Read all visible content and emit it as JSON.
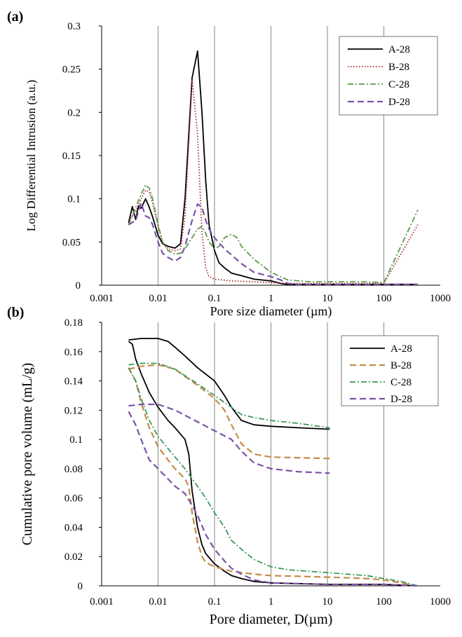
{
  "chart_data": [
    {
      "panel": "(a)",
      "type": "line",
      "x_scale": "log",
      "xlabel": "Pore size diameter (µm)",
      "ylabel": "Log Differential Intrusion (a.u.)",
      "xlim": [
        0.001,
        1000
      ],
      "ylim": [
        0,
        0.3
      ],
      "x_ticks": [
        "0.001",
        "0.01",
        "0.1",
        "1",
        "10",
        "100",
        "1000"
      ],
      "y_ticks": [
        "0",
        "0.05",
        "0.1",
        "0.15",
        "0.2",
        "0.25",
        "0.3"
      ],
      "vertical_grid": true,
      "legend_position": "top-right",
      "series": [
        {
          "name": "A-28",
          "color": "#000000",
          "style": "solid",
          "points": [
            [
              0.003,
              0.072
            ],
            [
              0.0035,
              0.091
            ],
            [
              0.004,
              0.076
            ],
            [
              0.0045,
              0.092
            ],
            [
              0.005,
              0.089
            ],
            [
              0.006,
              0.1
            ],
            [
              0.007,
              0.09
            ],
            [
              0.008,
              0.079
            ],
            [
              0.01,
              0.058
            ],
            [
              0.012,
              0.048
            ],
            [
              0.015,
              0.045
            ],
            [
              0.02,
              0.043
            ],
            [
              0.025,
              0.048
            ],
            [
              0.03,
              0.1
            ],
            [
              0.04,
              0.24
            ],
            [
              0.05,
              0.271
            ],
            [
              0.06,
              0.2
            ],
            [
              0.07,
              0.12
            ],
            [
              0.08,
              0.07
            ],
            [
              0.1,
              0.04
            ],
            [
              0.12,
              0.026
            ],
            [
              0.15,
              0.02
            ],
            [
              0.2,
              0.014
            ],
            [
              0.3,
              0.011
            ],
            [
              0.5,
              0.007
            ],
            [
              1,
              0.005
            ],
            [
              1.5,
              0.002
            ],
            [
              2,
              0.001
            ],
            [
              10,
              0.001
            ],
            [
              100,
              0.001
            ],
            [
              400,
              0.001
            ]
          ]
        },
        {
          "name": "B-28",
          "color": "#a52a2a",
          "style": "dotted",
          "points": [
            [
              0.003,
              0.075
            ],
            [
              0.004,
              0.085
            ],
            [
              0.005,
              0.1
            ],
            [
              0.006,
              0.11
            ],
            [
              0.007,
              0.108
            ],
            [
              0.008,
              0.095
            ],
            [
              0.01,
              0.068
            ],
            [
              0.012,
              0.05
            ],
            [
              0.015,
              0.042
            ],
            [
              0.02,
              0.04
            ],
            [
              0.025,
              0.042
            ],
            [
              0.03,
              0.08
            ],
            [
              0.04,
              0.238
            ],
            [
              0.05,
              0.175
            ],
            [
              0.06,
              0.06
            ],
            [
              0.07,
              0.02
            ],
            [
              0.08,
              0.01
            ],
            [
              0.1,
              0.007
            ],
            [
              0.2,
              0.005
            ],
            [
              0.5,
              0.004
            ],
            [
              1,
              0.003
            ],
            [
              2,
              0.002
            ],
            [
              10,
              0.002
            ],
            [
              100,
              0.002
            ],
            [
              400,
              0.07
            ]
          ]
        },
        {
          "name": "C-28",
          "color": "#5a9a4a",
          "style": "dash-dot",
          "points": [
            [
              0.003,
              0.07
            ],
            [
              0.004,
              0.09
            ],
            [
              0.005,
              0.105
            ],
            [
              0.006,
              0.116
            ],
            [
              0.007,
              0.112
            ],
            [
              0.008,
              0.1
            ],
            [
              0.01,
              0.07
            ],
            [
              0.012,
              0.05
            ],
            [
              0.015,
              0.04
            ],
            [
              0.02,
              0.036
            ],
            [
              0.025,
              0.037
            ],
            [
              0.03,
              0.042
            ],
            [
              0.04,
              0.055
            ],
            [
              0.05,
              0.065
            ],
            [
              0.06,
              0.068
            ],
            [
              0.07,
              0.06
            ],
            [
              0.08,
              0.05
            ],
            [
              0.1,
              0.042
            ],
            [
              0.12,
              0.045
            ],
            [
              0.15,
              0.055
            ],
            [
              0.2,
              0.059
            ],
            [
              0.25,
              0.055
            ],
            [
              0.3,
              0.045
            ],
            [
              0.5,
              0.03
            ],
            [
              1,
              0.015
            ],
            [
              2,
              0.006
            ],
            [
              5,
              0.004
            ],
            [
              10,
              0.004
            ],
            [
              50,
              0.004
            ],
            [
              100,
              0.003
            ],
            [
              400,
              0.087
            ]
          ]
        },
        {
          "name": "D-28",
          "color": "#7b52a8",
          "style": "dashed",
          "points": [
            [
              0.003,
              0.07
            ],
            [
              0.004,
              0.075
            ],
            [
              0.005,
              0.095
            ],
            [
              0.006,
              0.08
            ],
            [
              0.007,
              0.078
            ],
            [
              0.008,
              0.07
            ],
            [
              0.01,
              0.05
            ],
            [
              0.012,
              0.037
            ],
            [
              0.015,
              0.032
            ],
            [
              0.02,
              0.028
            ],
            [
              0.025,
              0.032
            ],
            [
              0.03,
              0.045
            ],
            [
              0.04,
              0.075
            ],
            [
              0.05,
              0.094
            ],
            [
              0.06,
              0.09
            ],
            [
              0.07,
              0.075
            ],
            [
              0.08,
              0.065
            ],
            [
              0.1,
              0.055
            ],
            [
              0.15,
              0.042
            ],
            [
              0.2,
              0.035
            ],
            [
              0.3,
              0.025
            ],
            [
              0.5,
              0.015
            ],
            [
              1,
              0.01
            ],
            [
              1.5,
              0.006
            ],
            [
              2,
              0.002
            ],
            [
              3,
              0.001
            ],
            [
              10,
              0.001
            ],
            [
              100,
              0.001
            ],
            [
              400,
              0.001
            ]
          ]
        }
      ]
    },
    {
      "panel": "(b)",
      "type": "line",
      "x_scale": "log",
      "xlabel": "Pore diameter, D(µm)",
      "ylabel": "Cumulative pore volume (mL/g)",
      "xlim": [
        0.001,
        1000
      ],
      "ylim": [
        0,
        0.18
      ],
      "x_ticks": [
        "0.001",
        "0.01",
        "0.1",
        "1",
        "10",
        "100",
        "1000"
      ],
      "y_ticks": [
        "0",
        "0.02",
        "0.04",
        "0.06",
        "0.08",
        "0.1",
        "0.12",
        "0.14",
        "0.16",
        "0.18"
      ],
      "vertical_grid": true,
      "legend_position": "top-right",
      "series": [
        {
          "name": "A-28",
          "color": "#000000",
          "style": "solid",
          "intrusion": [
            [
              0.003,
              0.167
            ],
            [
              0.0035,
              0.165
            ],
            [
              0.004,
              0.155
            ],
            [
              0.005,
              0.145
            ],
            [
              0.007,
              0.132
            ],
            [
              0.01,
              0.122
            ],
            [
              0.015,
              0.113
            ],
            [
              0.02,
              0.108
            ],
            [
              0.03,
              0.1
            ],
            [
              0.035,
              0.09
            ],
            [
              0.04,
              0.065
            ],
            [
              0.05,
              0.04
            ],
            [
              0.06,
              0.028
            ],
            [
              0.07,
              0.022
            ],
            [
              0.1,
              0.015
            ],
            [
              0.15,
              0.01
            ],
            [
              0.2,
              0.007
            ],
            [
              0.3,
              0.005
            ],
            [
              0.5,
              0.003
            ],
            [
              1,
              0.002
            ],
            [
              10,
              0.001
            ],
            [
              100,
              0.001
            ],
            [
              400,
              0.0
            ]
          ],
          "extrusion": [
            [
              0.003,
              0.168
            ],
            [
              0.005,
              0.169
            ],
            [
              0.01,
              0.169
            ],
            [
              0.015,
              0.167
            ],
            [
              0.02,
              0.163
            ],
            [
              0.03,
              0.157
            ],
            [
              0.05,
              0.149
            ],
            [
              0.1,
              0.14
            ],
            [
              0.15,
              0.13
            ],
            [
              0.2,
              0.122
            ],
            [
              0.3,
              0.113
            ],
            [
              0.5,
              0.11
            ],
            [
              1,
              0.109
            ],
            [
              3,
              0.108
            ],
            [
              11,
              0.107
            ]
          ]
        },
        {
          "name": "B-28",
          "color": "#c88a4a",
          "style": "dashed",
          "intrusion": [
            [
              0.003,
              0.149
            ],
            [
              0.004,
              0.14
            ],
            [
              0.005,
              0.125
            ],
            [
              0.007,
              0.108
            ],
            [
              0.01,
              0.095
            ],
            [
              0.015,
              0.086
            ],
            [
              0.02,
              0.08
            ],
            [
              0.03,
              0.073
            ],
            [
              0.035,
              0.068
            ],
            [
              0.04,
              0.05
            ],
            [
              0.05,
              0.03
            ],
            [
              0.06,
              0.02
            ],
            [
              0.07,
              0.016
            ],
            [
              0.1,
              0.013
            ],
            [
              0.2,
              0.01
            ],
            [
              0.5,
              0.008
            ],
            [
              1,
              0.007
            ],
            [
              10,
              0.006
            ],
            [
              50,
              0.005
            ],
            [
              100,
              0.004
            ],
            [
              200,
              0.002
            ],
            [
              400,
              0.0
            ]
          ],
          "extrusion": [
            [
              0.003,
              0.148
            ],
            [
              0.005,
              0.15
            ],
            [
              0.01,
              0.151
            ],
            [
              0.02,
              0.148
            ],
            [
              0.03,
              0.143
            ],
            [
              0.05,
              0.137
            ],
            [
              0.1,
              0.128
            ],
            [
              0.15,
              0.12
            ],
            [
              0.2,
              0.11
            ],
            [
              0.3,
              0.097
            ],
            [
              0.5,
              0.09
            ],
            [
              1,
              0.088
            ],
            [
              11,
              0.087
            ]
          ]
        },
        {
          "name": "C-28",
          "color": "#3a9a5a",
          "style": "dash-dot",
          "intrusion": [
            [
              0.003,
              0.149
            ],
            [
              0.004,
              0.14
            ],
            [
              0.005,
              0.128
            ],
            [
              0.007,
              0.113
            ],
            [
              0.01,
              0.102
            ],
            [
              0.02,
              0.088
            ],
            [
              0.03,
              0.08
            ],
            [
              0.05,
              0.068
            ],
            [
              0.07,
              0.06
            ],
            [
              0.1,
              0.05
            ],
            [
              0.15,
              0.04
            ],
            [
              0.2,
              0.031
            ],
            [
              0.3,
              0.025
            ],
            [
              0.5,
              0.018
            ],
            [
              1,
              0.013
            ],
            [
              2,
              0.011
            ],
            [
              10,
              0.009
            ],
            [
              50,
              0.007
            ],
            [
              100,
              0.005
            ],
            [
              200,
              0.003
            ],
            [
              400,
              0.0
            ]
          ],
          "extrusion": [
            [
              0.003,
              0.151
            ],
            [
              0.005,
              0.152
            ],
            [
              0.01,
              0.152
            ],
            [
              0.02,
              0.148
            ],
            [
              0.05,
              0.138
            ],
            [
              0.1,
              0.13
            ],
            [
              0.2,
              0.122
            ],
            [
              0.3,
              0.117
            ],
            [
              0.5,
              0.115
            ],
            [
              1,
              0.113
            ],
            [
              3,
              0.111
            ],
            [
              11,
              0.108
            ]
          ]
        },
        {
          "name": "D-28",
          "color": "#7b52a8",
          "style": "dashed",
          "intrusion": [
            [
              0.003,
              0.119
            ],
            [
              0.004,
              0.11
            ],
            [
              0.005,
              0.1
            ],
            [
              0.007,
              0.086
            ],
            [
              0.01,
              0.08
            ],
            [
              0.015,
              0.073
            ],
            [
              0.02,
              0.068
            ],
            [
              0.03,
              0.063
            ],
            [
              0.04,
              0.055
            ],
            [
              0.05,
              0.048
            ],
            [
              0.07,
              0.035
            ],
            [
              0.1,
              0.025
            ],
            [
              0.15,
              0.017
            ],
            [
              0.2,
              0.012
            ],
            [
              0.3,
              0.008
            ],
            [
              0.5,
              0.004
            ],
            [
              1,
              0.002
            ],
            [
              10,
              0.001
            ],
            [
              100,
              0.001
            ],
            [
              400,
              0.0
            ]
          ],
          "extrusion": [
            [
              0.003,
              0.123
            ],
            [
              0.005,
              0.124
            ],
            [
              0.01,
              0.124
            ],
            [
              0.02,
              0.12
            ],
            [
              0.05,
              0.112
            ],
            [
              0.1,
              0.106
            ],
            [
              0.2,
              0.1
            ],
            [
              0.3,
              0.092
            ],
            [
              0.5,
              0.084
            ],
            [
              1,
              0.08
            ],
            [
              3,
              0.078
            ],
            [
              11,
              0.077
            ]
          ]
        }
      ]
    }
  ]
}
